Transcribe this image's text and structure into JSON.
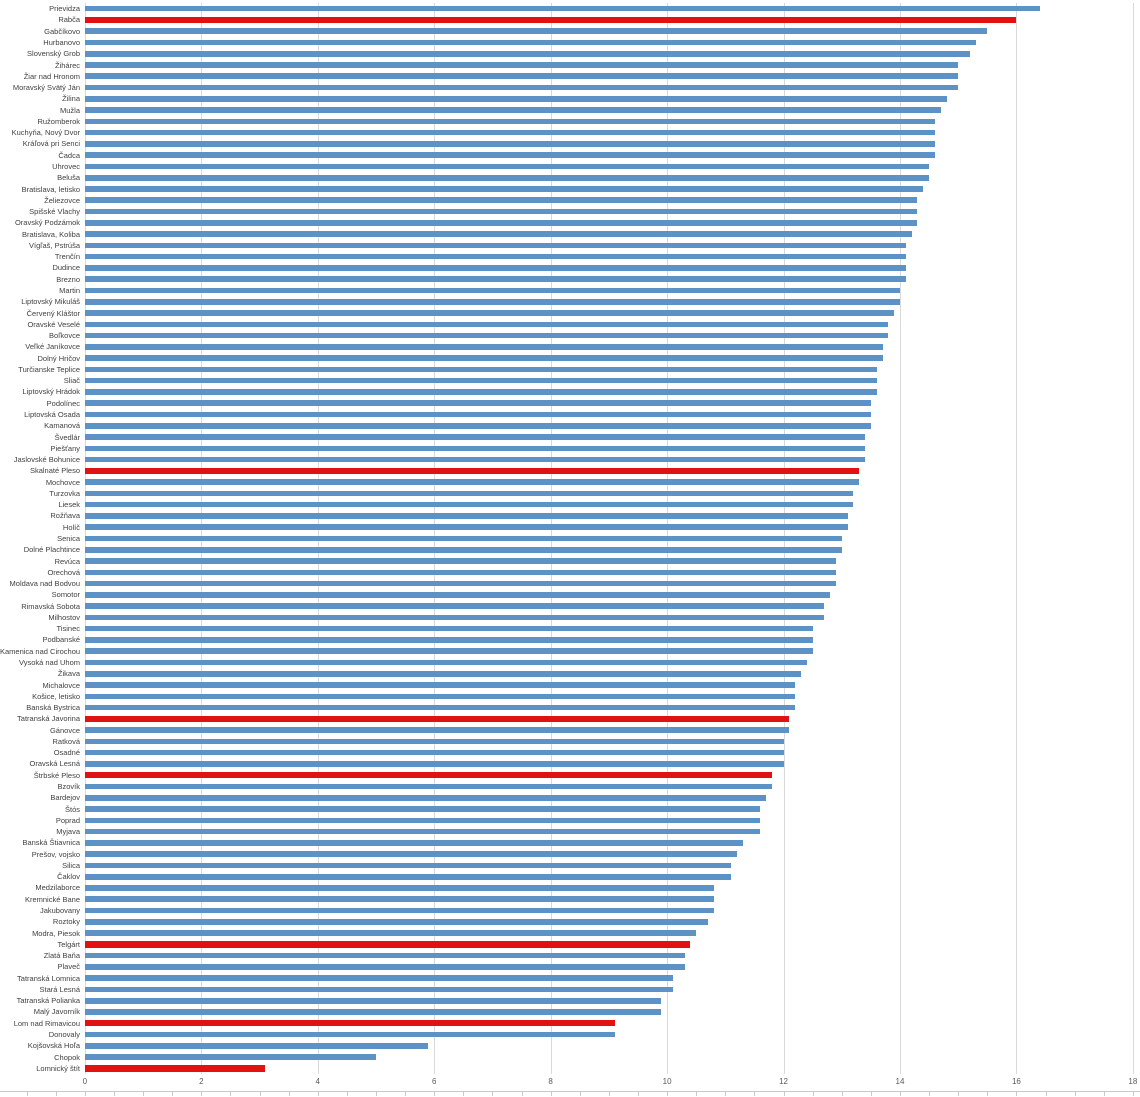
{
  "chart_data": {
    "type": "bar",
    "orientation": "horizontal",
    "title": "",
    "xlabel": "",
    "ylabel": "",
    "xlim": [
      0,
      18
    ],
    "x_ticks": [
      0,
      2,
      4,
      6,
      8,
      10,
      12,
      14,
      16,
      18
    ],
    "grid": "vertical-every-2",
    "legend_position": "none",
    "bar_color": "#5D92C7",
    "highlight_color": "#E31212",
    "gridline_color": "#D9D9D9",
    "axis_text_color": "#595959",
    "label_text_color": "#3F3F3F",
    "categories": [
      "Prievidza",
      "Rabča",
      "Gabčíkovo",
      "Hurbanovo",
      "Slovenský Grob",
      "Žihárec",
      "Žiar nad Hronom",
      "Moravský Svätý Ján",
      "Žilina",
      "Mužla",
      "Ružomberok",
      "Kuchyňa, Nový Dvor",
      "Kráľová pri Senci",
      "Čadca",
      "Uhrovec",
      "Beluša",
      "Bratislava, letisko",
      "Želiezovce",
      "Spišské Vlachy",
      "Oravský Podzámok",
      "Bratislava, Koliba",
      "Vígľaš, Pstrúša",
      "Trenčín",
      "Dudince",
      "Brezno",
      "Martin",
      "Liptovský Mikuláš",
      "Červený Kláštor",
      "Oravské Veselé",
      "Boľkovce",
      "Veľké Janíkovce",
      "Dolný Hričov",
      "Turčianske Teplice",
      "Sliač",
      "Liptovský Hrádok",
      "Podolínec",
      "Liptovská Osada",
      "Kamanová",
      "Švedlár",
      "Piešťany",
      "Jaslovské Bohunice",
      "Skalnaté Pleso",
      "Mochovce",
      "Turzovka",
      "Liesek",
      "Rožňava",
      "Holíč",
      "Senica",
      "Dolné Plachtince",
      "Revúca",
      "Orechová",
      "Moldava nad Bodvou",
      "Somotor",
      "Rimavská Sobota",
      "Milhostov",
      "Tisinec",
      "Podbanské",
      "Kamenica nad Cirochou",
      "Vysoká nad Uhom",
      "Žikava",
      "Michalovce",
      "Košice, letisko",
      "Banská Bystrica",
      "Tatranská Javorina",
      "Gánovce",
      "Ratková",
      "Osadné",
      "Oravská Lesná",
      "Štrbské Pleso",
      "Bzovík",
      "Bardejov",
      "Štós",
      "Poprad",
      "Myjava",
      "Banská Štiavnica",
      "Prešov, vojsko",
      "Silica",
      "Čaklov",
      "Medzilaborce",
      "Kremnické Bane",
      "Jakubovany",
      "Roztoky",
      "Modra, Piesok",
      "Telgárt",
      "Zlatá Baňa",
      "Plaveč",
      "Tatranská Lomnica",
      "Stará Lesná",
      "Tatranská Polianka",
      "Malý Javorník",
      "Lom nad Rimavicou",
      "Donovaly",
      "Kojšovská Hoľa",
      "Chopok",
      "Lomnický štít"
    ],
    "values": [
      16.4,
      16.0,
      15.5,
      15.3,
      15.2,
      15.0,
      15.0,
      15.0,
      14.8,
      14.7,
      14.6,
      14.6,
      14.6,
      14.6,
      14.5,
      14.5,
      14.4,
      14.3,
      14.3,
      14.3,
      14.2,
      14.1,
      14.1,
      14.1,
      14.1,
      14.0,
      14.0,
      13.9,
      13.8,
      13.8,
      13.7,
      13.7,
      13.6,
      13.6,
      13.6,
      13.5,
      13.5,
      13.5,
      13.4,
      13.4,
      13.4,
      13.3,
      13.3,
      13.2,
      13.2,
      13.1,
      13.1,
      13.0,
      13.0,
      12.9,
      12.9,
      12.9,
      12.8,
      12.7,
      12.7,
      12.5,
      12.5,
      12.5,
      12.4,
      12.3,
      12.2,
      12.2,
      12.2,
      12.1,
      12.1,
      12.0,
      12.0,
      12.0,
      11.8,
      11.8,
      11.7,
      11.6,
      11.6,
      11.6,
      11.3,
      11.2,
      11.1,
      11.1,
      10.8,
      10.8,
      10.8,
      10.7,
      10.5,
      10.4,
      10.3,
      10.3,
      10.1,
      10.1,
      9.9,
      9.9,
      9.1,
      9.1,
      5.9,
      5.0,
      3.1
    ],
    "highlighted_categories": [
      "Rabča",
      "Skalnaté Pleso",
      "Tatranská Javorina",
      "Štrbské Pleso",
      "Telgárt",
      "Lom nad Rimavicou",
      "Lomnický štít"
    ],
    "x_tick_labels": [
      "0",
      "2",
      "4",
      "6",
      "8",
      "10",
      "12",
      "14",
      "16",
      "18"
    ]
  }
}
